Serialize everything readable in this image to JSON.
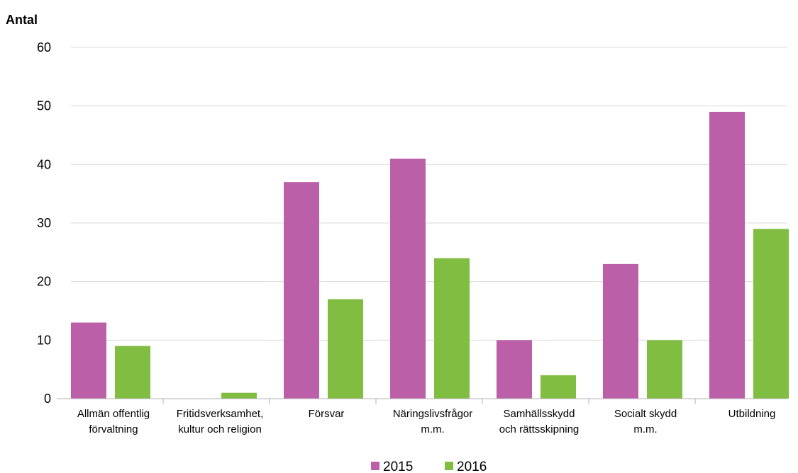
{
  "chart_data": {
    "type": "bar",
    "ylabel": "Antal",
    "xlabel": "",
    "ylim": [
      0,
      60
    ],
    "yticks": [
      "0",
      "10",
      "20",
      "30",
      "40",
      "50",
      "60"
    ],
    "categories": [
      [
        "Allmän offentlig",
        "förvaltning"
      ],
      [
        "Fritidsverksamhet,",
        "kultur och religion"
      ],
      [
        "Försvar"
      ],
      [
        "Näringslivsfrågor",
        "m.m."
      ],
      [
        "Samhällsskydd",
        "och rättsskipning"
      ],
      [
        "Socialt skydd",
        "m.m."
      ],
      [
        "Utbildning"
      ]
    ],
    "series": [
      {
        "name": "2015",
        "color": "#bb5fa8",
        "values": [
          13,
          0,
          37,
          41,
          10,
          23,
          49
        ]
      },
      {
        "name": "2016",
        "color": "#80bd41",
        "values": [
          9,
          1,
          17,
          24,
          4,
          10,
          29
        ]
      }
    ],
    "grid": true,
    "legend_position": "bottom-center"
  }
}
